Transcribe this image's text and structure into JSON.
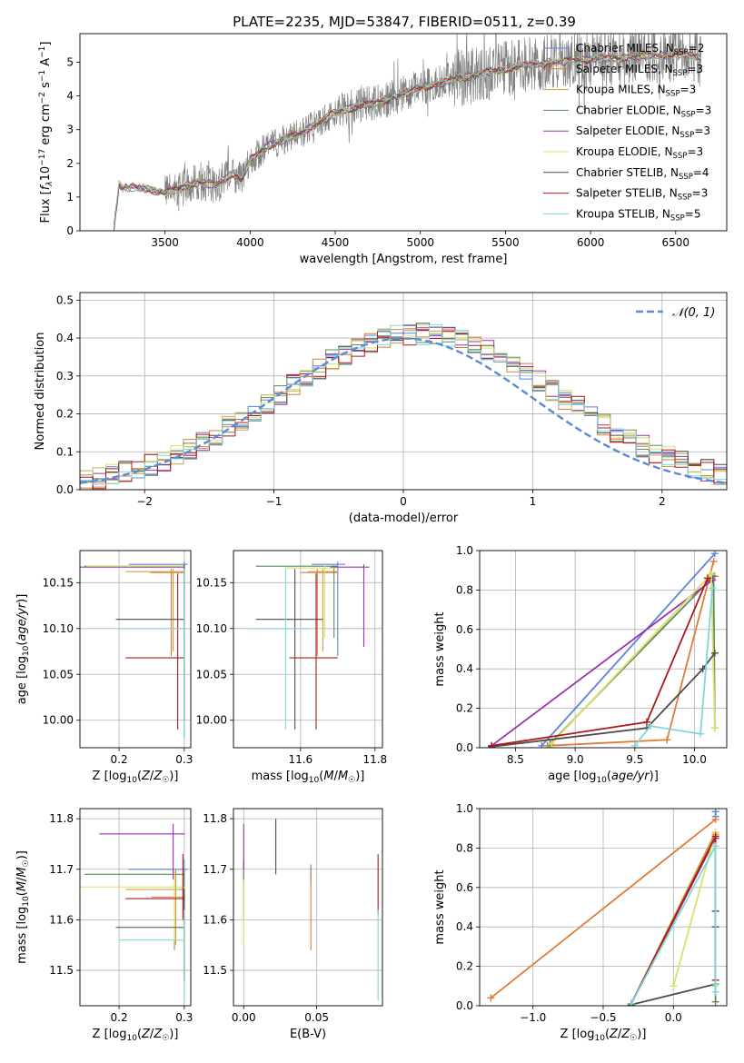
{
  "figure": {
    "title": "PLATE=2235, MJD=53847, FIBERID=0511, z=0.39"
  },
  "colors": {
    "Chabrier MILES": "#5b84d6",
    "Salpeter MILES": "#e07b39",
    "Kroupa MILES": "#c8a23c",
    "Chabrier ELODIE": "#5e8a5e",
    "Salpeter ELODIE": "#9b30b0",
    "Kroupa ELODIE": "#d9e06a",
    "Chabrier STELIB": "#4d4d4d",
    "Salpeter STELIB": "#b01818",
    "Kroupa STELIB": "#7fd7dc",
    "data": "#808080",
    "normal": "#5b8bd6"
  },
  "chart_data": [
    {
      "id": "spectrum",
      "type": "line",
      "xlabel": "wavelength [Angstrom, rest frame]",
      "ylabel": "Flux [f_λ 10^-17 erg cm^-2 s^-1 A^-1]",
      "xlim": [
        3000,
        6800
      ],
      "ylim": [
        0,
        5.85
      ],
      "xticks": [
        3500,
        4000,
        4500,
        5000,
        5500,
        6000,
        6500
      ],
      "yticks": [
        0,
        1,
        2,
        3,
        4,
        5
      ],
      "legend_position": "upper-right",
      "model_envelope": {
        "x": [
          3200,
          3230,
          3250,
          3300,
          3400,
          3500,
          3600,
          3700,
          3800,
          3900,
          3950,
          4000,
          4100,
          4200,
          4300,
          4400,
          4500,
          4600,
          4700,
          4800,
          4900,
          5000,
          5100,
          5200,
          5300,
          5400,
          5500,
          5600,
          5700,
          5800,
          5900,
          6000,
          6100,
          6200,
          6300,
          6400,
          6500,
          6600,
          6650
        ],
        "y": [
          0.1,
          1.35,
          1.25,
          1.3,
          1.25,
          1.1,
          1.3,
          1.45,
          1.35,
          1.7,
          1.5,
          2.1,
          2.5,
          2.7,
          2.9,
          3.2,
          3.5,
          3.65,
          3.75,
          3.9,
          4.05,
          4.25,
          4.35,
          4.5,
          4.6,
          4.7,
          4.8,
          4.9,
          4.95,
          5.0,
          5.05,
          5.1,
          5.1,
          5.15,
          5.2,
          5.2,
          5.25,
          5.2,
          5.1
        ]
      },
      "series": [
        {
          "label": "Chabrier MILES, N_SSP=2"
        },
        {
          "label": "Salpeter MILES, N_SSP=3"
        },
        {
          "label": "Kroupa MILES, N_SSP=3"
        },
        {
          "label": "Chabrier ELODIE, N_SSP=3"
        },
        {
          "label": "Salpeter ELODIE, N_SSP=3"
        },
        {
          "label": "Kroupa ELODIE, N_SSP=3"
        },
        {
          "label": "Chabrier STELIB, N_SSP=4"
        },
        {
          "label": "Salpeter STELIB, N_SSP=3"
        },
        {
          "label": "Kroupa STELIB, N_SSP=5"
        }
      ]
    },
    {
      "id": "residuals",
      "type": "line",
      "xlabel": "(data-model)/error",
      "ylabel": "Normed distribution",
      "xlim": [
        -2.5,
        2.5
      ],
      "ylim": [
        0,
        0.52
      ],
      "xticks": [
        -2,
        -1,
        0,
        1,
        2
      ],
      "yticks": [
        0.0,
        0.1,
        0.2,
        0.3,
        0.4,
        0.5
      ],
      "grid": true,
      "legend_position": "upper-right",
      "legend_label": "𝒩(0, 1)",
      "histogram_bin_width": 0.1
    },
    {
      "id": "age_vs_Z",
      "type": "scatter",
      "xlabel": "Z [log10(Z/Z☉)]",
      "ylabel": "age  [log10(age/yr)]",
      "xlim": [
        0.14,
        0.31
      ],
      "ylim": [
        9.97,
        10.185
      ],
      "xticks": [
        0.2,
        0.3
      ],
      "yticks": [
        10.0,
        10.05,
        10.1,
        10.15
      ],
      "grid": true,
      "points": [
        {
          "x": 0.3,
          "y": 10.17,
          "xerr": [
            0.215,
            0.305
          ],
          "yerr": [
            9.98,
            10.173
          ]
        },
        {
          "x": 0.28,
          "y": 10.161,
          "xerr": [
            0.248,
            0.301
          ],
          "yerr": [
            10.07,
            10.165
          ]
        },
        {
          "x": 0.283,
          "y": 10.162,
          "xerr": [
            0.21,
            0.301
          ],
          "yerr": [
            10.075,
            10.165
          ]
        },
        {
          "x": 0.3,
          "y": 10.168,
          "xerr": [
            0.147,
            0.301
          ],
          "yerr": [
            10.09,
            10.169
          ]
        },
        {
          "x": 0.3,
          "y": 10.167,
          "xerr": [
            0.14,
            0.301
          ],
          "yerr": [
            10.0,
            10.169
          ]
        },
        {
          "x": 0.3,
          "y": 10.168,
          "xerr": [
            0.15,
            0.301
          ],
          "yerr": [
            10.0,
            10.169
          ]
        },
        {
          "x": 0.3,
          "y": 10.11,
          "xerr": [
            0.195,
            0.301
          ],
          "yerr": [
            10.0,
            10.17
          ]
        },
        {
          "x": 0.29,
          "y": 10.068,
          "xerr": [
            0.21,
            0.301
          ],
          "yerr": [
            9.99,
            10.16
          ]
        },
        {
          "x": 0.3,
          "y": 10.1,
          "xerr": [
            0.2,
            0.301
          ],
          "yerr": [
            9.98,
            10.165
          ]
        }
      ]
    },
    {
      "id": "age_vs_mass",
      "type": "scatter",
      "xlabel": "mass [log10(M/M☉)]",
      "ylabel": "",
      "xlim": [
        11.42,
        11.82
      ],
      "ylim": [
        9.97,
        10.185
      ],
      "xticks": [
        11.6,
        11.8
      ],
      "yticks": [
        10.0,
        10.05,
        10.1,
        10.15
      ],
      "grid": true,
      "points": [
        {
          "x": 11.7,
          "y": 10.17,
          "xerr": [
            11.63,
            11.72
          ],
          "yerr": [
            10.07,
            10.173
          ]
        },
        {
          "x": 11.645,
          "y": 10.161,
          "xerr": [
            11.6,
            11.7
          ],
          "yerr": [
            10.07,
            10.165
          ]
        },
        {
          "x": 11.66,
          "y": 10.162,
          "xerr": [
            11.62,
            11.7
          ],
          "yerr": [
            10.075,
            10.165
          ]
        },
        {
          "x": 11.69,
          "y": 10.168,
          "xerr": [
            11.48,
            11.7
          ],
          "yerr": [
            10.09,
            10.169
          ]
        },
        {
          "x": 11.77,
          "y": 10.167,
          "xerr": [
            11.68,
            11.785
          ],
          "yerr": [
            10.08,
            10.17
          ]
        },
        {
          "x": 11.665,
          "y": 10.166,
          "xerr": [
            11.56,
            11.7
          ],
          "yerr": [
            10.09,
            10.169
          ]
        },
        {
          "x": 11.585,
          "y": 10.11,
          "xerr": [
            11.48,
            11.66
          ],
          "yerr": [
            9.99,
            10.165
          ]
        },
        {
          "x": 11.642,
          "y": 10.068,
          "xerr": [
            11.57,
            11.7
          ],
          "yerr": [
            9.99,
            10.16
          ]
        },
        {
          "x": 11.56,
          "y": 10.1,
          "xerr": [
            11.47,
            11.62
          ],
          "yerr": [
            9.99,
            10.165
          ]
        }
      ]
    },
    {
      "id": "weight_vs_age",
      "type": "line",
      "xlabel": "age  [log10(age/yr)]",
      "ylabel": "mass weight",
      "xlim": [
        8.2,
        10.27
      ],
      "ylim": [
        0,
        1.0
      ],
      "xticks": [
        8.5,
        9.0,
        9.5,
        10.0
      ],
      "yticks": [
        0.0,
        0.2,
        0.4,
        0.6,
        0.8,
        1.0
      ],
      "grid": true,
      "series": [
        {
          "x": [
            8.72,
            10.17
          ],
          "y": [
            0.01,
            0.985
          ]
        },
        {
          "x": [
            8.77,
            9.77,
            10.16
          ],
          "y": [
            0.01,
            0.04,
            0.945
          ]
        },
        {
          "x": [
            8.8,
            10.14,
            10.17
          ],
          "y": [
            0.02,
            0.88,
            0.87
          ]
        },
        {
          "x": [
            8.79,
            10.16,
            10.17
          ],
          "y": [
            0.02,
            0.87,
            0.1
          ]
        },
        {
          "x": [
            8.3,
            10.15
          ],
          "y": [
            0.01,
            0.85
          ]
        },
        {
          "x": [
            8.8,
            10.14,
            10.17
          ],
          "y": [
            0.02,
            0.88,
            0.1
          ]
        },
        {
          "x": [
            8.3,
            9.6,
            10.07,
            10.17
          ],
          "y": [
            0.005,
            0.1,
            0.4,
            0.48
          ]
        },
        {
          "x": [
            8.3,
            9.6,
            10.11
          ],
          "y": [
            0.01,
            0.13,
            0.86
          ]
        },
        {
          "x": [
            9.5,
            9.63,
            10.05,
            10.15
          ],
          "y": [
            0.01,
            0.11,
            0.07,
            0.81
          ]
        }
      ]
    },
    {
      "id": "mass_vs_Z",
      "type": "scatter",
      "xlabel": "Z [log10(Z/Z☉)]",
      "ylabel": "mass [log10(M/M☉)]",
      "xlim": [
        0.14,
        0.31
      ],
      "ylim": [
        11.43,
        11.82
      ],
      "xticks": [
        0.2,
        0.3
      ],
      "yticks": [
        11.5,
        11.6,
        11.7,
        11.8
      ],
      "grid": true,
      "points": [
        {
          "x": 0.3,
          "y": 11.7,
          "xerr": [
            0.215,
            0.305
          ],
          "yerr": [
            11.63,
            11.72
          ]
        },
        {
          "x": 0.285,
          "y": 11.645,
          "xerr": [
            0.25,
            0.301
          ],
          "yerr": [
            11.54,
            11.7
          ]
        },
        {
          "x": 0.287,
          "y": 11.66,
          "xerr": [
            0.21,
            0.301
          ],
          "yerr": [
            11.55,
            11.7
          ]
        },
        {
          "x": 0.3,
          "y": 11.69,
          "xerr": [
            0.147,
            0.301
          ],
          "yerr": [
            11.48,
            11.7
          ]
        },
        {
          "x": 0.283,
          "y": 11.77,
          "xerr": [
            0.17,
            0.301
          ],
          "yerr": [
            11.68,
            11.79
          ]
        },
        {
          "x": 0.285,
          "y": 11.665,
          "xerr": [
            0.14,
            0.301
          ],
          "yerr": [
            11.56,
            11.7
          ]
        },
        {
          "x": 0.3,
          "y": 11.585,
          "xerr": [
            0.195,
            0.301
          ],
          "yerr": [
            11.48,
            11.66
          ]
        },
        {
          "x": 0.298,
          "y": 11.642,
          "xerr": [
            0.21,
            0.301
          ],
          "yerr": [
            11.6,
            11.73
          ]
        },
        {
          "x": 0.3,
          "y": 11.56,
          "xerr": [
            0.2,
            0.301
          ],
          "yerr": [
            11.44,
            11.62
          ]
        }
      ]
    },
    {
      "id": "mass_vs_ebv",
      "type": "scatter",
      "xlabel": "E(B-V)",
      "ylabel": "",
      "xlim": [
        -0.007,
        0.095
      ],
      "ylim": [
        11.43,
        11.82
      ],
      "xticks": [
        0.0,
        0.05
      ],
      "yticks": [
        11.5,
        11.6,
        11.7,
        11.8
      ],
      "grid": true,
      "points": [
        {
          "x": 0.046,
          "y": 11.69,
          "yerr": [
            11.67,
            11.71
          ]
        },
        {
          "x": 0.046,
          "y": 11.645,
          "yerr": [
            11.54,
            11.7
          ]
        },
        {
          "x": 0.0,
          "y": 11.66,
          "yerr": [
            11.6,
            11.72
          ]
        },
        {
          "x": 0.0,
          "y": 11.7,
          "yerr": [
            11.67,
            11.72
          ]
        },
        {
          "x": 0.0,
          "y": 11.76,
          "yerr": [
            11.7,
            11.79
          ]
        },
        {
          "x": 0.0,
          "y": 11.625,
          "yerr": [
            11.55,
            11.68
          ]
        },
        {
          "x": 0.022,
          "y": 11.75,
          "yerr": [
            11.69,
            11.8
          ]
        },
        {
          "x": 0.092,
          "y": 11.67,
          "yerr": [
            11.61,
            11.73
          ]
        },
        {
          "x": 0.092,
          "y": 11.55,
          "yerr": [
            11.44,
            11.62
          ]
        }
      ]
    },
    {
      "id": "weight_vs_Z",
      "type": "line",
      "xlabel": "Z [log10(Z/Z☉)]",
      "ylabel": "mass weight",
      "xlim": [
        -1.38,
        0.38
      ],
      "ylim": [
        0,
        1.0
      ],
      "xticks": [
        -1.0,
        -0.5,
        0.0
      ],
      "yticks": [
        0.0,
        0.2,
        0.4,
        0.6,
        0.8,
        1.0
      ],
      "grid": true,
      "series": [
        {
          "x": [
            0.3,
            0.3
          ],
          "y": [
            0.985,
            0.96
          ]
        },
        {
          "x": [
            -1.3,
            0.3
          ],
          "y": [
            0.04,
            0.945
          ]
        },
        {
          "x": [
            -0.3,
            0.3,
            0.3
          ],
          "y": [
            0.01,
            0.88,
            0.87
          ]
        },
        {
          "x": [
            -0.3,
            0.3,
            0.3
          ],
          "y": [
            0.01,
            0.85,
            0.02
          ]
        },
        {
          "x": [
            -0.3,
            0.3
          ],
          "y": [
            0.01,
            0.85
          ]
        },
        {
          "x": [
            0.0,
            0.3,
            0.3
          ],
          "y": [
            0.1,
            0.88,
            0.1
          ]
        },
        {
          "x": [
            -0.3,
            0.3,
            0.3,
            0.3
          ],
          "y": [
            0.005,
            0.11,
            0.4,
            0.48
          ]
        },
        {
          "x": [
            -0.3,
            0.3,
            0.3
          ],
          "y": [
            0.01,
            0.86,
            0.13
          ]
        },
        {
          "x": [
            -0.3,
            0.3,
            0.3,
            0.3
          ],
          "y": [
            0.01,
            0.81,
            0.07,
            0.11
          ]
        }
      ]
    }
  ]
}
